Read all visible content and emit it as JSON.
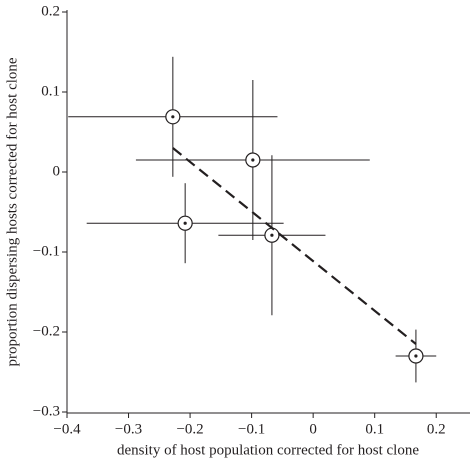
{
  "chart_data": {
    "type": "scatter",
    "x_label": "density of host population corrected for host clone",
    "y_label": "proportion dispersing hosts corrected for host clone",
    "x": [
      -0.228,
      -0.098,
      -0.208,
      -0.067,
      0.167
    ],
    "y": [
      0.069,
      0.015,
      -0.064,
      -0.079,
      -0.23
    ],
    "xerr": [
      0.17,
      0.19,
      0.16,
      0.087,
      0.033
    ],
    "yerr": [
      0.075,
      0.1,
      0.05,
      0.1,
      0.033
    ],
    "fit": {
      "x": [
        -0.228,
        0.167
      ],
      "y": [
        0.03,
        -0.215
      ]
    },
    "color": "#231f20",
    "xlim": [
      -0.4,
      0.25
    ],
    "ylim": [
      -0.3,
      0.2
    ],
    "xticks": [
      {
        "value": -0.4,
        "label": "−0.4"
      },
      {
        "value": -0.3,
        "label": "−0.3"
      },
      {
        "value": -0.2,
        "label": "−0.2"
      },
      {
        "value": -0.1,
        "label": "−0.1"
      },
      0,
      0.1,
      0.2
    ],
    "yticks": [
      {
        "value": -0.3,
        "label": "−0.3"
      },
      {
        "value": -0.2,
        "label": "−0.2"
      },
      {
        "value": -0.1,
        "label": "−0.1"
      },
      0,
      0.1,
      0.2
    ]
  }
}
